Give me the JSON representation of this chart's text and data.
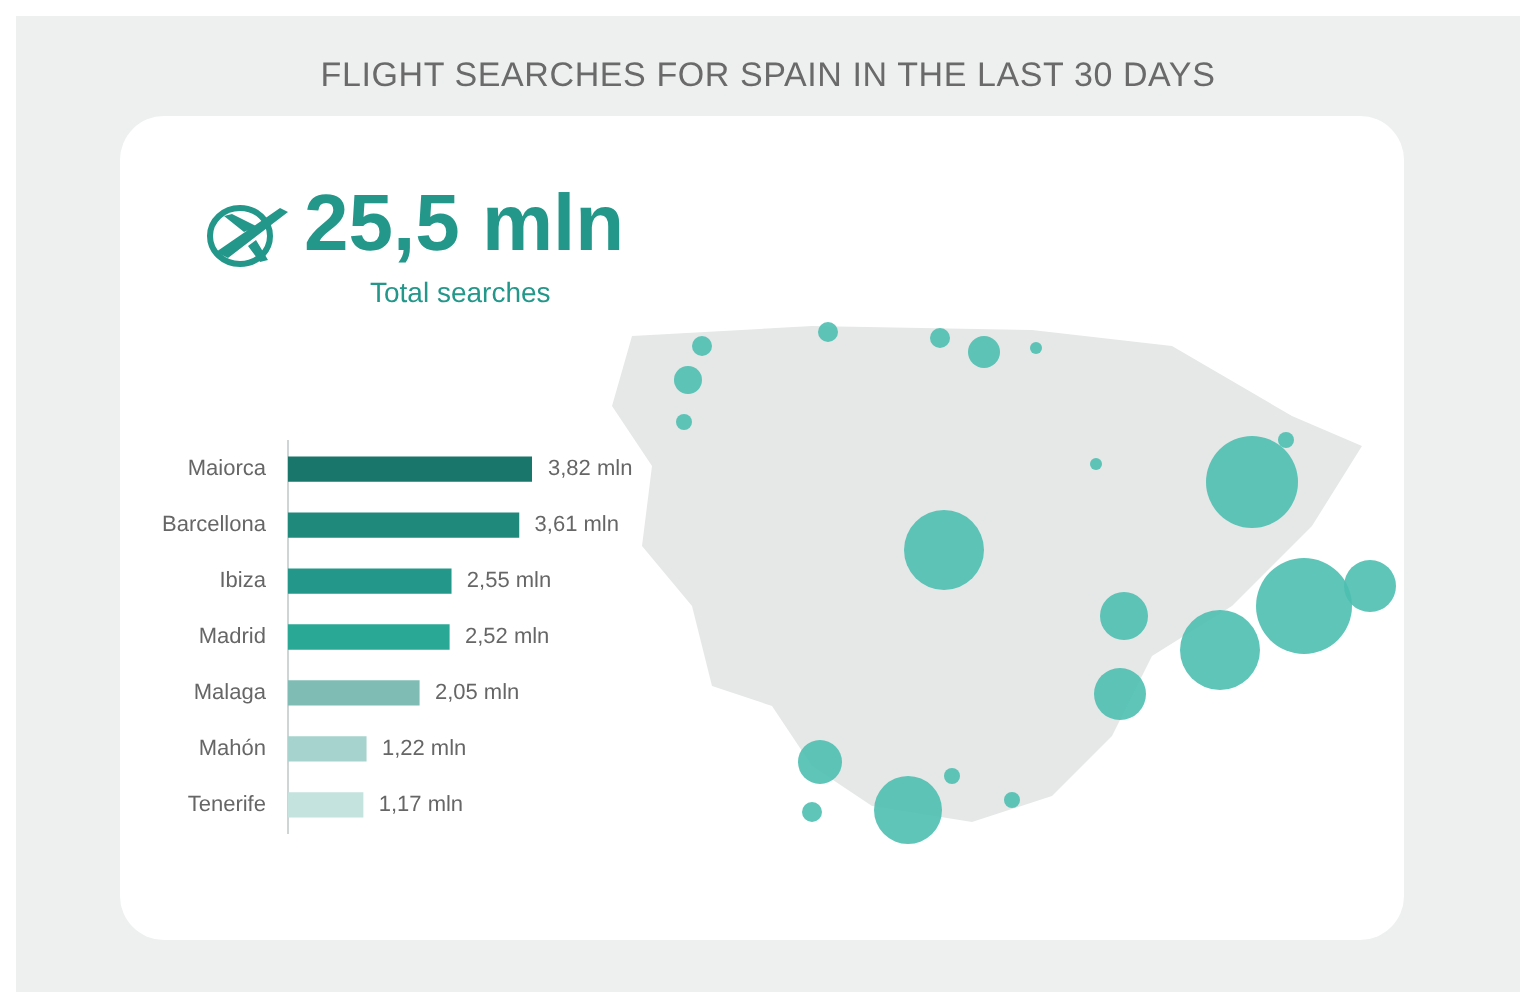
{
  "chart_data": {
    "type": "bar",
    "orientation": "horizontal",
    "title": "FLIGHT SEARCHES FOR SPAIN IN THE LAST 30 DAYS",
    "annotations": [
      "25,5 mln",
      "Total searches"
    ],
    "categories": [
      "Maiorca",
      "Barcellona",
      "Ibiza",
      "Madrid",
      "Malaga",
      "Mahón",
      "Tenerife"
    ],
    "values": [
      3.82,
      3.61,
      2.55,
      2.52,
      2.05,
      1.22,
      1.17
    ],
    "value_labels": [
      "3,82 mln",
      "3,61 mln",
      "2,55 mln",
      "2,52 mln",
      "2,05 mln",
      "1,22 mln",
      "1,17 mln"
    ],
    "colors": [
      "#19766a",
      "#1f8a7c",
      "#23978a",
      "#2aa896",
      "#7fbcb4",
      "#a6d3cd",
      "#c4e2de"
    ]
  }
}
